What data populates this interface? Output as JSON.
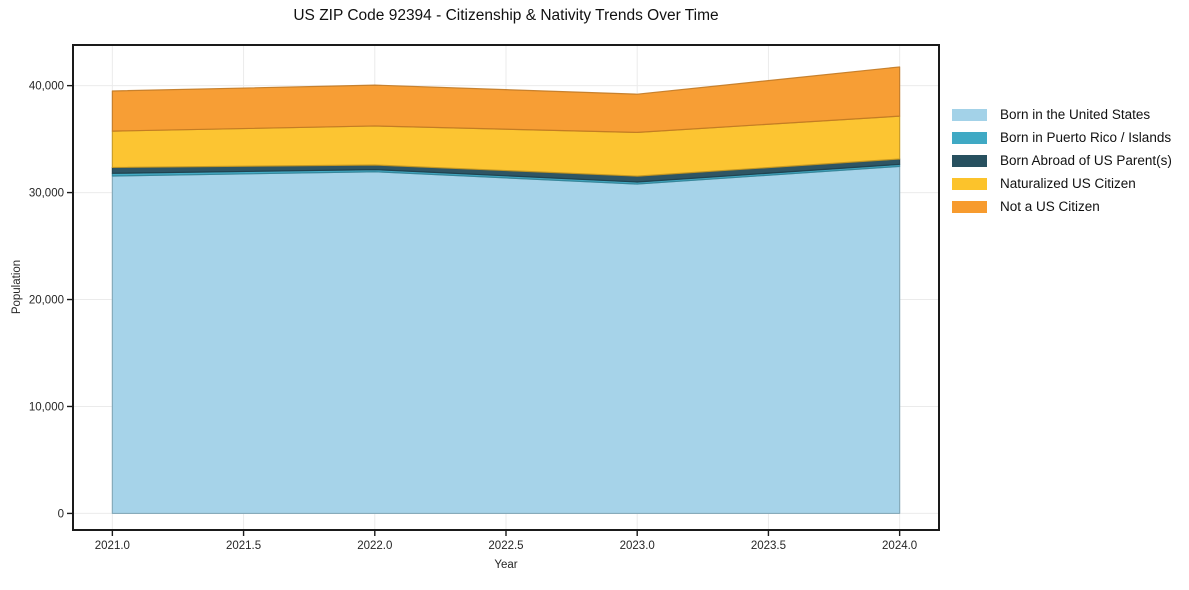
{
  "figure": {
    "background": "#ffffff"
  },
  "chart_data": {
    "type": "area",
    "stacked": true,
    "title": "US ZIP Code 92394 - Citizenship & Nativity Trends Over Time",
    "xlabel": "Year",
    "ylabel": "Population",
    "x": [
      2021,
      2022,
      2023,
      2024
    ],
    "series": [
      {
        "name": "Born in the United States",
        "color": "#A3D2E8",
        "values": [
          31550,
          31950,
          30800,
          32450
        ]
      },
      {
        "name": "Born in Puerto Rico / Islands",
        "color": "#3FA9C4",
        "values": [
          250,
          200,
          190,
          190
        ]
      },
      {
        "name": "Born Abroad of US Parent(s)",
        "color": "#27505F",
        "values": [
          550,
          430,
          550,
          500
        ]
      },
      {
        "name": "Naturalized US Citizen",
        "color": "#FCC32B",
        "values": [
          3400,
          3650,
          4090,
          4010
        ]
      },
      {
        "name": "Not a US Citizen",
        "color": "#F79B2E",
        "values": [
          3750,
          3820,
          3570,
          4600
        ]
      }
    ],
    "stacked_totals": [
      39500,
      40050,
      39200,
      41750
    ],
    "xticks": [
      2021.0,
      2021.5,
      2022.0,
      2022.5,
      2023.0,
      2023.5,
      2024.0
    ],
    "xtick_labels": [
      "2021.0",
      "2021.5",
      "2022.0",
      "2022.5",
      "2023.0",
      "2023.5",
      "2024.0"
    ],
    "yticks": [
      0,
      10000,
      20000,
      30000,
      40000
    ],
    "ytick_labels": [
      "0",
      "10,000",
      "20,000",
      "30,000",
      "40,000"
    ],
    "xlim": [
      2020.85,
      2024.15
    ],
    "ylim": [
      -1550,
      43800
    ],
    "grid": true,
    "legend_position": "right-outside",
    "colors": {
      "spine": "#1a1a1a",
      "grid": "#ebebeb",
      "tick_text": "#262626",
      "title_text": "#111111"
    }
  }
}
